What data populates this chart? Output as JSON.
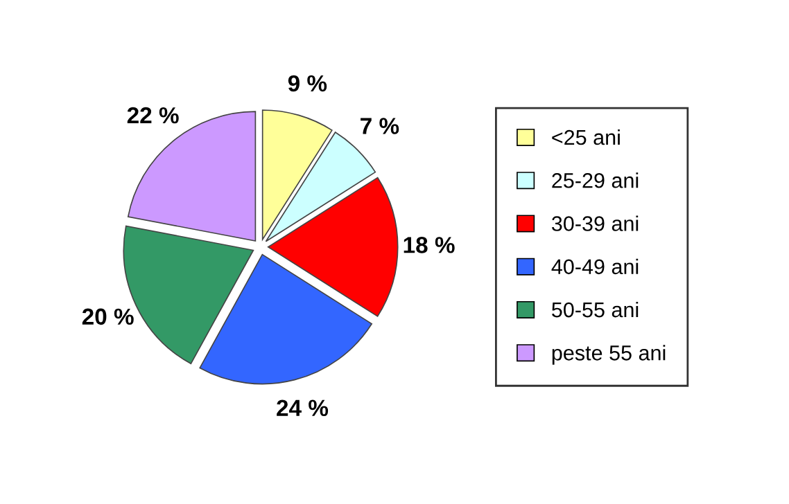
{
  "chart_data": {
    "type": "pie",
    "categories": [
      "<25 ani",
      "25-29 ani",
      "30-39 ani",
      "40-49 ani",
      "50-55 ani",
      "peste 55 ani"
    ],
    "values": [
      9,
      7,
      18,
      24,
      20,
      22
    ],
    "value_labels": [
      "9 %",
      "7 %",
      "18 %",
      "24 %",
      "20 %",
      "22 %"
    ],
    "colors": [
      "#ffff99",
      "#ccffff",
      "#ff0000",
      "#3366ff",
      "#339966",
      "#cc99ff"
    ],
    "legend": "right"
  }
}
